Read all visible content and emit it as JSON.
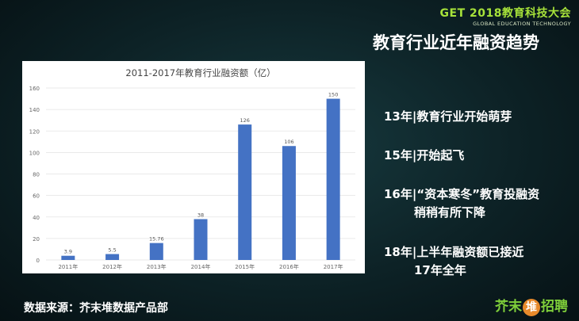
{
  "header": {
    "logo_main": "GET 2018教育科技大会",
    "logo_sub": "GLOBAL EDUCATION TECHNOLOGY"
  },
  "slide_title": "教育行业近年融资趋势",
  "bullets": [
    "13年|教育行业开始萌芽",
    "15年|开始起飞",
    "16年|“资本寒冬”教育投融资",
    "稍稍有所下降",
    "18年|上半年融资额已接近",
    "17年全年"
  ],
  "source": "数据来源：芥末堆数据产品部",
  "brand": {
    "left": "芥末",
    "mark": "堆",
    "right": "招聘"
  },
  "colors": {
    "bar": "#4472c4",
    "accent_green": "#7fcf3a"
  },
  "chart_data": {
    "type": "bar",
    "title": "2011-2017年教育行业融资额（亿）",
    "categories": [
      "2011年",
      "2012年",
      "2013年",
      "2014年",
      "2015年",
      "2016年",
      "2017年"
    ],
    "values": [
      3.9,
      5.5,
      15.76,
      38,
      126,
      106,
      150
    ],
    "value_labels": [
      "3.9",
      "5.5",
      "15.76",
      "38",
      "126",
      "106",
      "150"
    ],
    "y_ticks": [
      0,
      20,
      40,
      60,
      80,
      100,
      120,
      140,
      160
    ],
    "ylim": [
      0,
      160
    ],
    "grid": true,
    "legend": "none"
  }
}
